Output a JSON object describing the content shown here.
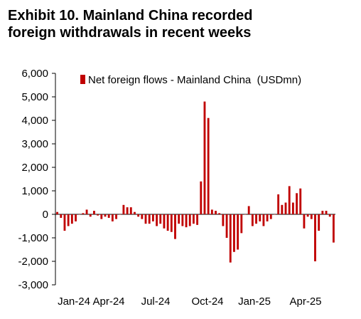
{
  "title": {
    "line1": "Exhibit 10. Mainland China recorded",
    "line2": "foreign withdrawals in recent weeks"
  },
  "chart_data": {
    "type": "bar",
    "title": "Exhibit 10. Mainland China recorded foreign withdrawals in recent weeks",
    "xlabel": "",
    "ylabel": "",
    "ylim": [
      -3000,
      6000
    ],
    "yticks": [
      -3000,
      -2000,
      -1000,
      0,
      1000,
      2000,
      3000,
      4000,
      5000,
      6000
    ],
    "ytick_labels": [
      "-3,000",
      "-2,000",
      "-1,000",
      "0",
      "1,000",
      "2,000",
      "3,000",
      "4,000",
      "5,000",
      "6,000"
    ],
    "xtick_labels": [
      "Jan-24",
      "Apr-24",
      "Jul-24",
      "Oct-24",
      "Jan-25",
      "Apr-25"
    ],
    "grid": false,
    "legend_position": "top",
    "color": "#c00000",
    "series": [
      {
        "name": "Net foreign flows - Mainland China  (USDmn)",
        "frequency": "weekly",
        "start": "Jan-24",
        "values": [
          100,
          -150,
          -700,
          -500,
          -400,
          -300,
          0,
          50,
          200,
          -100,
          150,
          -50,
          -200,
          -100,
          -150,
          -300,
          -200,
          0,
          400,
          300,
          300,
          100,
          -100,
          -200,
          -400,
          -400,
          -300,
          -500,
          -400,
          -600,
          -700,
          -750,
          -1050,
          -400,
          -500,
          -550,
          -500,
          -400,
          -450,
          1400,
          4800,
          4100,
          200,
          150,
          50,
          -500,
          -1000,
          -2050,
          -1600,
          -1500,
          -800,
          0,
          350,
          -500,
          -400,
          -300,
          -500,
          -300,
          -200,
          0,
          850,
          400,
          500,
          1200,
          500,
          900,
          1100,
          -600,
          -100,
          -200,
          -2000,
          -700,
          150,
          150,
          -100,
          -1200
        ]
      }
    ]
  }
}
